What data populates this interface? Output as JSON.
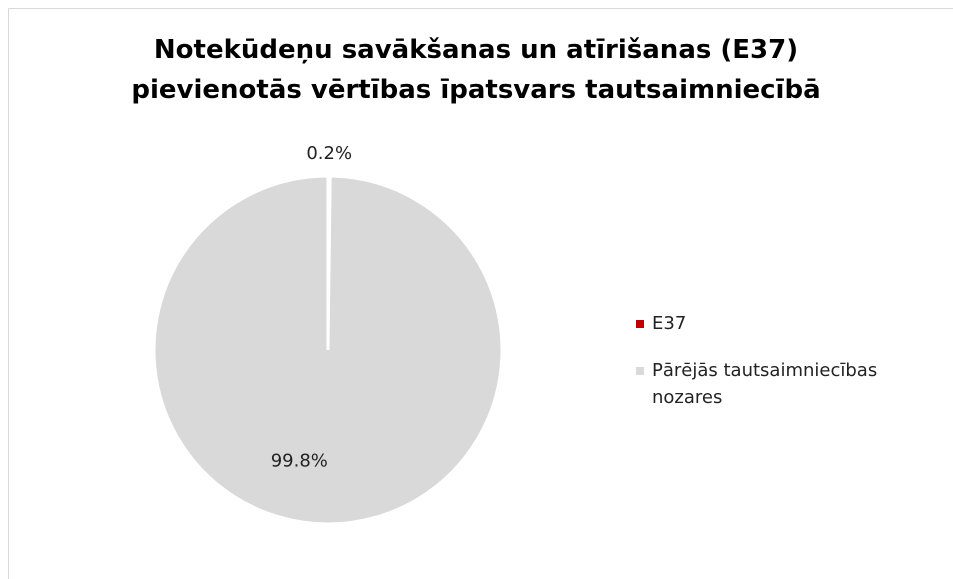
{
  "chart_data": {
    "type": "pie",
    "title": "Notekūdeņu savākšanas un atīrišanas (E37) pievienotās vērtības īpatsvars tautsaimniecībā",
    "categories": [
      "E37",
      "Pārējās tautsaimniecības nozares"
    ],
    "values": [
      0.2,
      99.8
    ],
    "value_labels": [
      "0.2%",
      "99.8%"
    ],
    "colors": [
      "#c00000",
      "#d9d9d9"
    ],
    "legend": "right"
  }
}
